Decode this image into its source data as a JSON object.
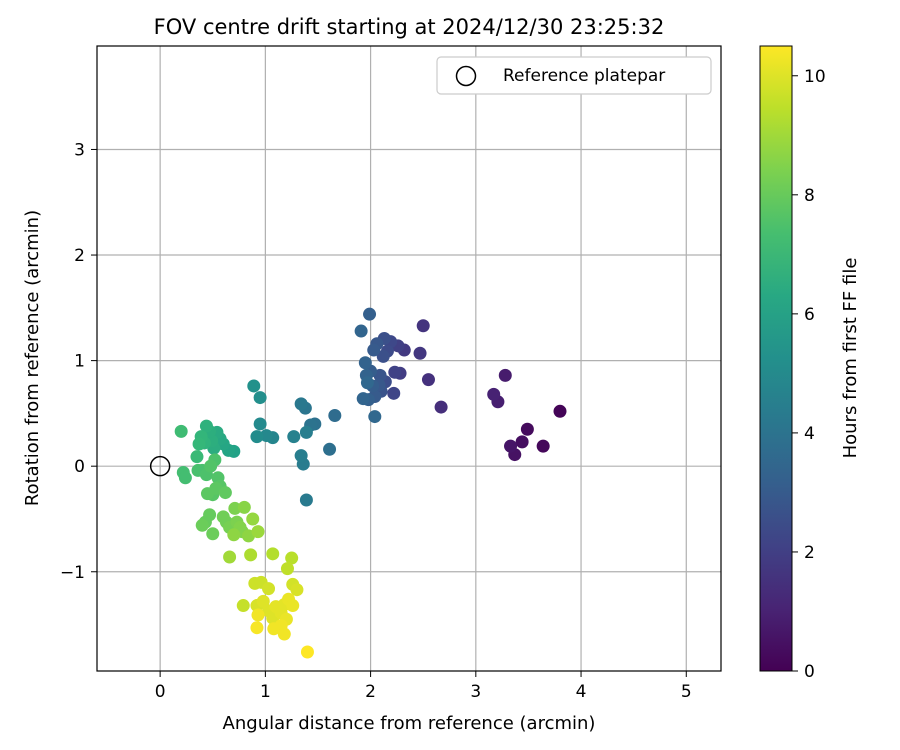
{
  "chart_data": {
    "type": "scatter",
    "title": "FOV centre drift starting at 2024/12/30 23:25:32",
    "xlabel": "Angular distance from reference (arcmin)",
    "ylabel": "Rotation from reference (arcmin)",
    "xlim": [
      -0.6,
      5.33
    ],
    "ylim": [
      -1.94,
      3.98
    ],
    "xticks": [
      0,
      1,
      2,
      3,
      4,
      5
    ],
    "yticks": [
      -1,
      0,
      1,
      2,
      3
    ],
    "xtick_labels": [
      "0",
      "1",
      "2",
      "3",
      "4",
      "5"
    ],
    "ytick_labels": [
      "−1",
      "0",
      "1",
      "2",
      "3"
    ],
    "grid": true,
    "legend": {
      "placement": "top-right",
      "entries": [
        "Reference platepar"
      ]
    },
    "reference_point": {
      "name": "Reference platepar",
      "x": 0,
      "y": 0,
      "marker": "open-circle"
    },
    "colorbar": {
      "label": "Hours from first FF file",
      "colormap": "viridis",
      "range": [
        0,
        10.5
      ],
      "ticks": [
        0,
        2,
        4,
        6,
        8,
        10
      ],
      "tick_labels": [
        "0",
        "2",
        "4",
        "6",
        "8",
        "10"
      ]
    },
    "points": [
      {
        "x": 3.8,
        "y": 0.52,
        "c": 0.1
      },
      {
        "x": 3.64,
        "y": 0.19,
        "c": 0.2
      },
      {
        "x": 3.49,
        "y": 0.35,
        "c": 0.3
      },
      {
        "x": 3.44,
        "y": 0.23,
        "c": 0.4
      },
      {
        "x": 3.37,
        "y": 0.11,
        "c": 0.5
      },
      {
        "x": 3.33,
        "y": 0.19,
        "c": 0.6
      },
      {
        "x": 3.28,
        "y": 0.86,
        "c": 0.8
      },
      {
        "x": 3.21,
        "y": 0.61,
        "c": 0.9
      },
      {
        "x": 3.17,
        "y": 0.68,
        "c": 1.0
      },
      {
        "x": 2.67,
        "y": 0.56,
        "c": 1.4
      },
      {
        "x": 2.55,
        "y": 0.82,
        "c": 1.5
      },
      {
        "x": 2.5,
        "y": 1.33,
        "c": 1.6
      },
      {
        "x": 2.47,
        "y": 1.07,
        "c": 1.7
      },
      {
        "x": 2.32,
        "y": 1.1,
        "c": 1.8
      },
      {
        "x": 2.28,
        "y": 0.88,
        "c": 1.9
      },
      {
        "x": 2.26,
        "y": 1.14,
        "c": 2.0
      },
      {
        "x": 2.23,
        "y": 0.89,
        "c": 2.1
      },
      {
        "x": 2.22,
        "y": 0.69,
        "c": 2.2
      },
      {
        "x": 2.19,
        "y": 1.18,
        "c": 2.3
      },
      {
        "x": 2.16,
        "y": 1.09,
        "c": 2.4
      },
      {
        "x": 2.14,
        "y": 0.8,
        "c": 2.5
      },
      {
        "x": 2.13,
        "y": 1.21,
        "c": 2.6
      },
      {
        "x": 2.12,
        "y": 1.04,
        "c": 2.6
      },
      {
        "x": 2.1,
        "y": 0.71,
        "c": 2.7
      },
      {
        "x": 2.09,
        "y": 0.86,
        "c": 2.8
      },
      {
        "x": 2.08,
        "y": 0.77,
        "c": 2.9
      },
      {
        "x": 2.06,
        "y": 1.16,
        "c": 2.9
      },
      {
        "x": 2.04,
        "y": 0.66,
        "c": 3.0
      },
      {
        "x": 2.03,
        "y": 1.1,
        "c": 3.0
      },
      {
        "x": 2.02,
        "y": 0.76,
        "c": 3.1
      },
      {
        "x": 2.0,
        "y": 0.9,
        "c": 3.1
      },
      {
        "x": 1.99,
        "y": 1.44,
        "c": 3.2
      },
      {
        "x": 1.98,
        "y": 0.63,
        "c": 3.2
      },
      {
        "x": 1.96,
        "y": 0.86,
        "c": 3.3
      },
      {
        "x": 1.95,
        "y": 0.98,
        "c": 3.3
      },
      {
        "x": 1.93,
        "y": 0.64,
        "c": 3.4
      },
      {
        "x": 1.91,
        "y": 1.28,
        "c": 3.4
      },
      {
        "x": 2.04,
        "y": 0.47,
        "c": 3.5
      },
      {
        "x": 1.97,
        "y": 0.79,
        "c": 3.5
      },
      {
        "x": 1.66,
        "y": 0.48,
        "c": 3.7
      },
      {
        "x": 1.61,
        "y": 0.16,
        "c": 3.8
      },
      {
        "x": 1.47,
        "y": 0.4,
        "c": 3.9
      },
      {
        "x": 1.43,
        "y": 0.39,
        "c": 4.0
      },
      {
        "x": 1.38,
        "y": 0.55,
        "c": 4.1
      },
      {
        "x": 1.34,
        "y": 0.59,
        "c": 4.2
      },
      {
        "x": 1.39,
        "y": -0.32,
        "c": 4.3
      },
      {
        "x": 1.36,
        "y": 0.02,
        "c": 4.4
      },
      {
        "x": 1.34,
        "y": 0.1,
        "c": 4.5
      },
      {
        "x": 1.39,
        "y": 0.32,
        "c": 4.5
      },
      {
        "x": 1.27,
        "y": 0.28,
        "c": 4.6
      },
      {
        "x": 1.07,
        "y": 0.27,
        "c": 4.8
      },
      {
        "x": 1.01,
        "y": 0.29,
        "c": 4.9
      },
      {
        "x": 0.95,
        "y": 0.4,
        "c": 5.0
      },
      {
        "x": 0.92,
        "y": 0.28,
        "c": 5.1
      },
      {
        "x": 0.95,
        "y": 0.65,
        "c": 5.2
      },
      {
        "x": 0.89,
        "y": 0.76,
        "c": 5.3
      },
      {
        "x": 0.7,
        "y": 0.14,
        "c": 6.0
      },
      {
        "x": 0.65,
        "y": 0.15,
        "c": 6.1
      },
      {
        "x": 0.6,
        "y": 0.21,
        "c": 6.2
      },
      {
        "x": 0.57,
        "y": 0.26,
        "c": 6.3
      },
      {
        "x": 0.54,
        "y": 0.32,
        "c": 6.4
      },
      {
        "x": 0.51,
        "y": 0.17,
        "c": 6.5
      },
      {
        "x": 0.49,
        "y": 0.24,
        "c": 6.6
      },
      {
        "x": 0.47,
        "y": 0.33,
        "c": 6.6
      },
      {
        "x": 0.44,
        "y": 0.38,
        "c": 6.7
      },
      {
        "x": 0.42,
        "y": 0.22,
        "c": 6.8
      },
      {
        "x": 0.39,
        "y": 0.28,
        "c": 6.9
      },
      {
        "x": 0.37,
        "y": 0.21,
        "c": 7.0
      },
      {
        "x": 0.35,
        "y": 0.09,
        "c": 7.1
      },
      {
        "x": 0.2,
        "y": 0.33,
        "c": 7.2
      },
      {
        "x": 0.22,
        "y": -0.06,
        "c": 7.3
      },
      {
        "x": 0.24,
        "y": -0.11,
        "c": 7.3
      },
      {
        "x": 0.36,
        "y": -0.04,
        "c": 7.4
      },
      {
        "x": 0.4,
        "y": -0.04,
        "c": 7.4
      },
      {
        "x": 0.44,
        "y": -0.08,
        "c": 7.5
      },
      {
        "x": 0.52,
        "y": 0.06,
        "c": 7.5
      },
      {
        "x": 0.48,
        "y": 0.0,
        "c": 7.6
      },
      {
        "x": 0.55,
        "y": -0.11,
        "c": 7.6
      },
      {
        "x": 0.57,
        "y": -0.19,
        "c": 7.7
      },
      {
        "x": 0.5,
        "y": -0.27,
        "c": 7.7
      },
      {
        "x": 0.45,
        "y": -0.26,
        "c": 7.8
      },
      {
        "x": 0.53,
        "y": -0.21,
        "c": 7.8
      },
      {
        "x": 0.62,
        "y": -0.25,
        "c": 7.9
      },
      {
        "x": 0.47,
        "y": -0.46,
        "c": 8.0
      },
      {
        "x": 0.43,
        "y": -0.53,
        "c": 8.0
      },
      {
        "x": 0.4,
        "y": -0.56,
        "c": 8.1
      },
      {
        "x": 0.5,
        "y": -0.64,
        "c": 8.1
      },
      {
        "x": 0.6,
        "y": -0.48,
        "c": 8.2
      },
      {
        "x": 0.63,
        "y": -0.53,
        "c": 8.2
      },
      {
        "x": 0.66,
        "y": -0.58,
        "c": 8.3
      },
      {
        "x": 0.71,
        "y": -0.4,
        "c": 8.4
      },
      {
        "x": 0.73,
        "y": -0.53,
        "c": 8.4
      },
      {
        "x": 0.76,
        "y": -0.58,
        "c": 8.5
      },
      {
        "x": 0.78,
        "y": -0.62,
        "c": 8.5
      },
      {
        "x": 0.8,
        "y": -0.39,
        "c": 8.6
      },
      {
        "x": 0.84,
        "y": -0.66,
        "c": 8.7
      },
      {
        "x": 0.7,
        "y": -0.65,
        "c": 8.7
      },
      {
        "x": 0.88,
        "y": -0.5,
        "c": 8.8
      },
      {
        "x": 0.93,
        "y": -0.62,
        "c": 8.9
      },
      {
        "x": 0.66,
        "y": -0.86,
        "c": 9.0
      },
      {
        "x": 0.86,
        "y": -0.84,
        "c": 9.2
      },
      {
        "x": 1.07,
        "y": -0.83,
        "c": 9.3
      },
      {
        "x": 1.25,
        "y": -0.87,
        "c": 9.4
      },
      {
        "x": 1.21,
        "y": -0.97,
        "c": 9.5
      },
      {
        "x": 0.79,
        "y": -1.32,
        "c": 9.6
      },
      {
        "x": 0.9,
        "y": -1.11,
        "c": 9.7
      },
      {
        "x": 0.96,
        "y": -1.1,
        "c": 9.7
      },
      {
        "x": 1.03,
        "y": -1.16,
        "c": 9.8
      },
      {
        "x": 1.26,
        "y": -1.12,
        "c": 9.8
      },
      {
        "x": 1.3,
        "y": -1.17,
        "c": 9.9
      },
      {
        "x": 0.92,
        "y": -1.32,
        "c": 9.9
      },
      {
        "x": 0.98,
        "y": -1.28,
        "c": 10.0
      },
      {
        "x": 1.03,
        "y": -1.37,
        "c": 10.0
      },
      {
        "x": 1.07,
        "y": -1.44,
        "c": 10.0
      },
      {
        "x": 1.1,
        "y": -1.33,
        "c": 10.1
      },
      {
        "x": 1.15,
        "y": -1.39,
        "c": 10.1
      },
      {
        "x": 1.18,
        "y": -1.31,
        "c": 10.1
      },
      {
        "x": 1.22,
        "y": -1.26,
        "c": 10.2
      },
      {
        "x": 1.26,
        "y": -1.32,
        "c": 10.2
      },
      {
        "x": 1.2,
        "y": -1.45,
        "c": 10.2
      },
      {
        "x": 1.08,
        "y": -1.54,
        "c": 10.3
      },
      {
        "x": 1.15,
        "y": -1.51,
        "c": 10.3
      },
      {
        "x": 1.18,
        "y": -1.59,
        "c": 10.3
      },
      {
        "x": 0.93,
        "y": -1.41,
        "c": 10.3
      },
      {
        "x": 0.92,
        "y": -1.53,
        "c": 10.4
      },
      {
        "x": 1.4,
        "y": -1.76,
        "c": 10.5
      }
    ]
  }
}
